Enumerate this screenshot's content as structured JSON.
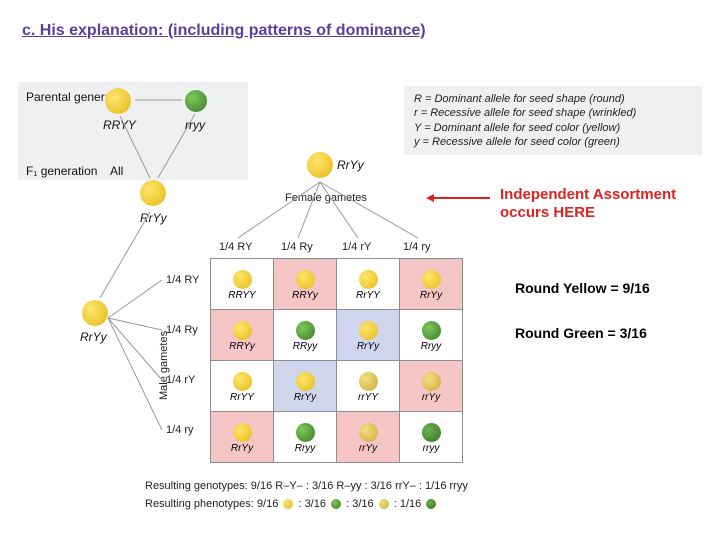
{
  "title": "c. His explanation: (including patterns of dominance)",
  "legend": {
    "R": "R = Dominant allele for seed shape (round)",
    "r": "r = Recessive allele for seed shape (wrinkled)",
    "Y": "Y = Dominant allele for seed color (yellow)",
    "y": "y = Recessive allele for seed color (green)"
  },
  "labels": {
    "parental": "Parental generation",
    "p1": "RRYY",
    "p2": "rryy",
    "f1gen": "F₁ generation",
    "all": "All",
    "f1": "RrYy",
    "f1b": "RrYy",
    "female_gametes": "Female gametes",
    "male_gametes": "Male gametes"
  },
  "arrow_note": {
    "l1": "Independent Assortment",
    "l2": "occurs HERE"
  },
  "side1": "Round Yellow = 9/16",
  "side2": "Round Green = 3/16",
  "gamete_fractions": [
    "1/4 RY",
    "1/4 Ry",
    "1/4 rY",
    "1/4 ry"
  ],
  "row_gametes": [
    "1/4 RY",
    "1/4 Ry",
    "1/4 rY",
    "1/4 ry"
  ],
  "punnett": {
    "colors": {
      "yellow": "#e6b818",
      "green": "#3d7a2b",
      "ywrink": "#cbaa3a",
      "gwrink": "#357026"
    },
    "cells": [
      [
        {
          "g": "RRYY",
          "c": "yellow",
          "bg": ""
        },
        {
          "g": "RRYy",
          "c": "yellow",
          "bg": "bg-pink"
        },
        {
          "g": "RrYY",
          "c": "yellow",
          "bg": ""
        },
        {
          "g": "RrYy",
          "c": "yellow",
          "bg": "bg-pink"
        }
      ],
      [
        {
          "g": "RRYy",
          "c": "yellow",
          "bg": "bg-pink"
        },
        {
          "g": "RRyy",
          "c": "green",
          "bg": ""
        },
        {
          "g": "RrYy",
          "c": "yellow",
          "bg": "bg-blue"
        },
        {
          "g": "Rryy",
          "c": "green",
          "bg": ""
        }
      ],
      [
        {
          "g": "RrYY",
          "c": "yellow",
          "bg": ""
        },
        {
          "g": "RrYy",
          "c": "yellow",
          "bg": "bg-blue"
        },
        {
          "g": "rrYY",
          "c": "ywrink",
          "bg": ""
        },
        {
          "g": "rrYy",
          "c": "ywrink",
          "bg": "bg-pink"
        }
      ],
      [
        {
          "g": "RrYy",
          "c": "yellow",
          "bg": "bg-pink"
        },
        {
          "g": "Rryy",
          "c": "green",
          "bg": ""
        },
        {
          "g": "rrYy",
          "c": "ywrink",
          "bg": "bg-pink"
        },
        {
          "g": "rryy",
          "c": "gwrink",
          "bg": ""
        }
      ]
    ]
  },
  "results": {
    "geno": "Resulting genotypes:  9/16 R–Y– : 3/16 R–yy : 3/16 rrY– : 1/16 rryy",
    "pheno_prefix": "Resulting phenotypes: 9/16",
    "pheno_parts": [
      ": 3/16",
      ": 3/16",
      ": 1/16"
    ]
  }
}
